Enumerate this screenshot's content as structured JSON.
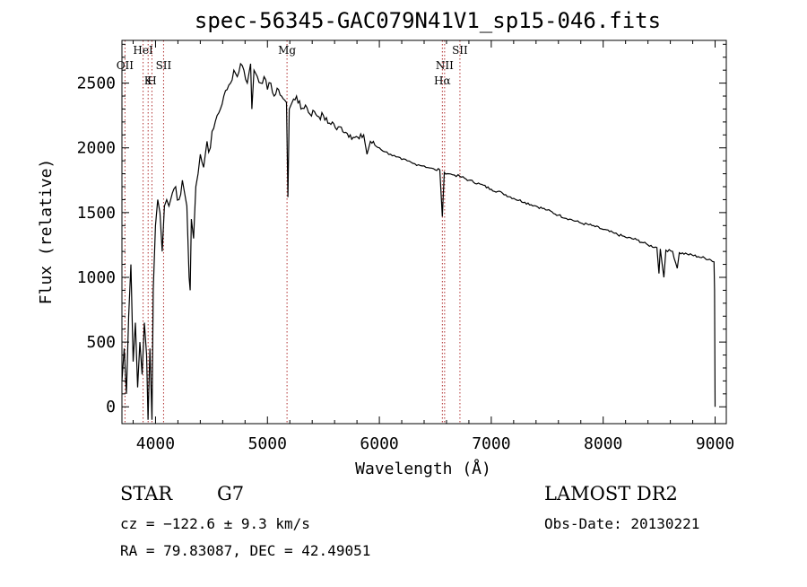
{
  "chart_data": {
    "type": "line",
    "title": "spec-56345-GAC079N41V1_sp15-046.fits",
    "xlabel": "Wavelength (Å)",
    "ylabel": "Flux (relative)",
    "xlim": [
      3700,
      9100
    ],
    "ylim": [
      -130,
      2830
    ],
    "x_ticks": [
      4000,
      5000,
      6000,
      7000,
      8000,
      9000
    ],
    "x_tick_labels": [
      "4000",
      "5000",
      "6000",
      "7000",
      "8000",
      "9000"
    ],
    "y_ticks": [
      0,
      500,
      1000,
      1500,
      2000,
      2500
    ],
    "y_tick_labels": [
      "0",
      "500",
      "1000",
      "1500",
      "2000",
      "2500"
    ],
    "line_color": "#000000",
    "marker_color": "#b03030",
    "spectrum": [
      [
        3700,
        200
      ],
      [
        3720,
        450
      ],
      [
        3740,
        100
      ],
      [
        3760,
        700
      ],
      [
        3780,
        1100
      ],
      [
        3800,
        350
      ],
      [
        3820,
        650
      ],
      [
        3840,
        150
      ],
      [
        3860,
        500
      ],
      [
        3880,
        250
      ],
      [
        3900,
        650
      ],
      [
        3920,
        400
      ],
      [
        3933,
        -100
      ],
      [
        3950,
        450
      ],
      [
        3968,
        -100
      ],
      [
        3980,
        900
      ],
      [
        4000,
        1400
      ],
      [
        4020,
        1600
      ],
      [
        4040,
        1500
      ],
      [
        4060,
        1200
      ],
      [
        4080,
        1550
      ],
      [
        4100,
        1600
      ],
      [
        4120,
        1550
      ],
      [
        4150,
        1650
      ],
      [
        4180,
        1700
      ],
      [
        4210,
        1600
      ],
      [
        4240,
        1750
      ],
      [
        4260,
        1650
      ],
      [
        4280,
        1550
      ],
      [
        4300,
        1000
      ],
      [
        4310,
        900
      ],
      [
        4320,
        1450
      ],
      [
        4340,
        1300
      ],
      [
        4360,
        1700
      ],
      [
        4380,
        1800
      ],
      [
        4400,
        1950
      ],
      [
        4430,
        1850
      ],
      [
        4460,
        2050
      ],
      [
        4490,
        2000
      ],
      [
        4520,
        2150
      ],
      [
        4550,
        2250
      ],
      [
        4580,
        2300
      ],
      [
        4610,
        2400
      ],
      [
        4640,
        2450
      ],
      [
        4670,
        2500
      ],
      [
        4700,
        2600
      ],
      [
        4730,
        2550
      ],
      [
        4760,
        2650
      ],
      [
        4790,
        2600
      ],
      [
        4820,
        2500
      ],
      [
        4850,
        2650
      ],
      [
        4861,
        2300
      ],
      [
        4880,
        2600
      ],
      [
        4910,
        2550
      ],
      [
        4940,
        2500
      ],
      [
        4970,
        2550
      ],
      [
        5000,
        2450
      ],
      [
        5030,
        2500
      ],
      [
        5060,
        2400
      ],
      [
        5100,
        2450
      ],
      [
        5140,
        2380
      ],
      [
        5170,
        2350
      ],
      [
        5183,
        1620
      ],
      [
        5195,
        2300
      ],
      [
        5220,
        2350
      ],
      [
        5260,
        2400
      ],
      [
        5300,
        2300
      ],
      [
        5340,
        2330
      ],
      [
        5380,
        2260
      ],
      [
        5420,
        2280
      ],
      [
        5460,
        2240
      ],
      [
        5500,
        2250
      ],
      [
        5540,
        2190
      ],
      [
        5580,
        2200
      ],
      [
        5620,
        2140
      ],
      [
        5660,
        2160
      ],
      [
        5700,
        2120
      ],
      [
        5740,
        2100
      ],
      [
        5780,
        2080
      ],
      [
        5820,
        2070
      ],
      [
        5860,
        2100
      ],
      [
        5890,
        1950
      ],
      [
        5920,
        2050
      ],
      [
        5960,
        2020
      ],
      [
        6000,
        2000
      ],
      [
        6050,
        1970
      ],
      [
        6100,
        1950
      ],
      [
        6150,
        1930
      ],
      [
        6200,
        1910
      ],
      [
        6250,
        1900
      ],
      [
        6300,
        1880
      ],
      [
        6350,
        1870
      ],
      [
        6400,
        1860
      ],
      [
        6450,
        1845
      ],
      [
        6500,
        1830
      ],
      [
        6540,
        1830
      ],
      [
        6563,
        1470
      ],
      [
        6580,
        1810
      ],
      [
        6620,
        1800
      ],
      [
        6670,
        1790
      ],
      [
        6720,
        1780
      ],
      [
        6800,
        1750
      ],
      [
        6900,
        1720
      ],
      [
        7000,
        1680
      ],
      [
        7100,
        1650
      ],
      [
        7200,
        1610
      ],
      [
        7300,
        1580
      ],
      [
        7400,
        1550
      ],
      [
        7500,
        1520
      ],
      [
        7600,
        1480
      ],
      [
        7700,
        1450
      ],
      [
        7800,
        1420
      ],
      [
        7900,
        1400
      ],
      [
        8000,
        1370
      ],
      [
        8100,
        1340
      ],
      [
        8200,
        1310
      ],
      [
        8300,
        1290
      ],
      [
        8400,
        1250
      ],
      [
        8480,
        1230
      ],
      [
        8498,
        1030
      ],
      [
        8510,
        1220
      ],
      [
        8542,
        1000
      ],
      [
        8560,
        1210
      ],
      [
        8620,
        1200
      ],
      [
        8662,
        1070
      ],
      [
        8680,
        1190
      ],
      [
        8750,
        1180
      ],
      [
        8850,
        1160
      ],
      [
        8950,
        1140
      ],
      [
        8990,
        1120
      ],
      [
        8995,
        900
      ],
      [
        9000,
        0
      ]
    ],
    "lines": [
      {
        "label": "OII",
        "x": 3727,
        "row": 1
      },
      {
        "label": "HeI",
        "x": 3889,
        "row": 0
      },
      {
        "label": "K",
        "x": 3934,
        "row": 2
      },
      {
        "label": "H",
        "x": 3968,
        "row": 2
      },
      {
        "label": "SII",
        "x": 4072,
        "row": 1
      },
      {
        "label": "Mg",
        "x": 5175,
        "row": 0
      },
      {
        "label": "NII",
        "x": 6583,
        "row": 1
      },
      {
        "label": "Hα",
        "x": 6563,
        "row": 2
      },
      {
        "label": "SII",
        "x": 6720,
        "row": 0
      }
    ]
  },
  "info": {
    "object_class": "STAR",
    "subclass": "G7",
    "survey": "LAMOST DR2",
    "cz": "cz = −122.6 ± 9.3 km/s",
    "obs_date": "Obs-Date: 20130221",
    "radec": "RA =  79.83087, DEC =  42.49051"
  }
}
